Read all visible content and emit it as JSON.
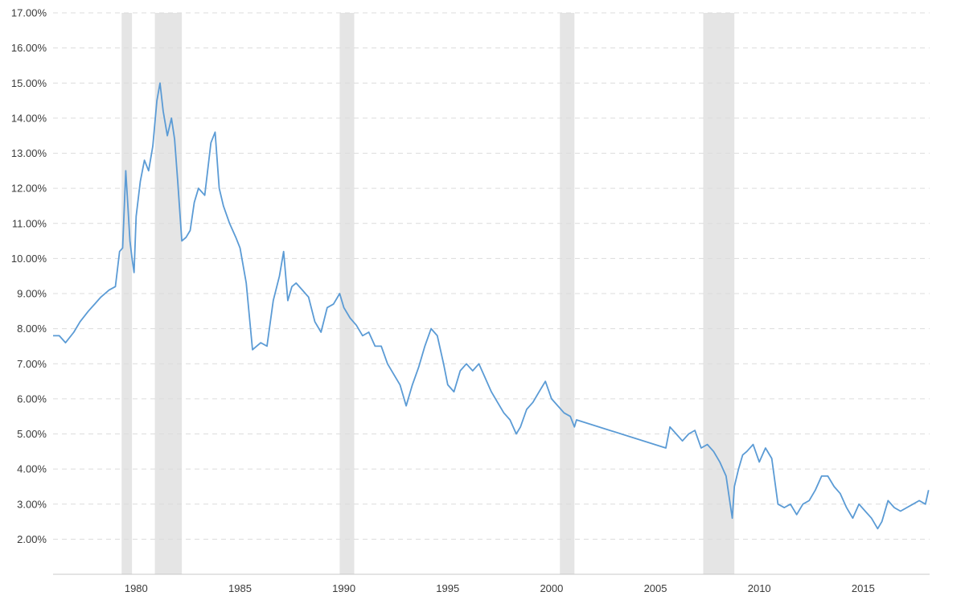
{
  "chart_data": {
    "type": "line",
    "title": "",
    "xlabel": "",
    "ylabel": "",
    "xlim": [
      1976.0,
      2018.2
    ],
    "ylim": [
      1.0,
      17.0
    ],
    "grid": true,
    "y_ticks": [
      {
        "value": 2,
        "label": "2.00%"
      },
      {
        "value": 3,
        "label": "3.00%"
      },
      {
        "value": 4,
        "label": "4.00%"
      },
      {
        "value": 5,
        "label": "5.00%"
      },
      {
        "value": 6,
        "label": "6.00%"
      },
      {
        "value": 7,
        "label": "7.00%"
      },
      {
        "value": 8,
        "label": "8.00%"
      },
      {
        "value": 9,
        "label": "9.00%"
      },
      {
        "value": 10,
        "label": "10.00%"
      },
      {
        "value": 11,
        "label": "11.00%"
      },
      {
        "value": 12,
        "label": "12.00%"
      },
      {
        "value": 13,
        "label": "13.00%"
      },
      {
        "value": 14,
        "label": "14.00%"
      },
      {
        "value": 15,
        "label": "15.00%"
      },
      {
        "value": 16,
        "label": "16.00%"
      },
      {
        "value": 17,
        "label": "17.00%"
      }
    ],
    "x_ticks": [
      {
        "value": 1980,
        "label": "1980"
      },
      {
        "value": 1985,
        "label": "1985"
      },
      {
        "value": 1990,
        "label": "1990"
      },
      {
        "value": 1995,
        "label": "1995"
      },
      {
        "value": 2000,
        "label": "2000"
      },
      {
        "value": 2005,
        "label": "2005"
      },
      {
        "value": 2010,
        "label": "2010"
      },
      {
        "value": 2015,
        "label": "2015"
      }
    ],
    "recessions": [
      {
        "start": 1979.3,
        "end": 1979.8
      },
      {
        "start": 1980.9,
        "end": 1982.2
      },
      {
        "start": 1989.8,
        "end": 1990.5
      },
      {
        "start": 2000.4,
        "end": 2001.1
      },
      {
        "start": 2007.3,
        "end": 2008.8
      }
    ],
    "colors": {
      "line": "#5b9bd5",
      "recession": "#e5e5e5",
      "grid": "#dcdcdc"
    },
    "series": [
      {
        "x": [
          1976.0,
          1976.3,
          1976.6,
          1977.0,
          1977.3,
          1977.7,
          1978.0,
          1978.3,
          1978.7,
          1979.0,
          1979.2,
          1979.35,
          1979.5,
          1979.7,
          1979.8,
          1979.9,
          1980.0,
          1980.2,
          1980.4,
          1980.6,
          1980.8,
          1981.0,
          1981.15,
          1981.3,
          1981.5,
          1981.7,
          1981.85,
          1982.0,
          1982.2,
          1982.4,
          1982.6,
          1982.8,
          1983.0,
          1983.3,
          1983.6,
          1983.8,
          1984.0,
          1984.2,
          1984.5,
          1984.8,
          1985.0,
          1985.3,
          1985.6,
          1985.8,
          1986.0,
          1986.3,
          1986.6,
          1986.9,
          1987.1,
          1987.3,
          1987.5,
          1987.7,
          1988.0,
          1988.3,
          1988.6,
          1988.9,
          1989.2,
          1989.5,
          1989.8,
          1990.0,
          1990.3,
          1990.6,
          1990.9,
          1991.2,
          1991.5,
          1991.8,
          1992.1,
          1992.4,
          1992.7,
          1993.0,
          1993.3,
          1993.6,
          1993.9,
          1994.2,
          1994.5,
          1994.8,
          1995.0,
          1995.3,
          1995.6,
          1995.9,
          1996.2,
          1996.5,
          1996.8,
          1997.1,
          1997.4,
          1997.7,
          1998.0,
          1998.3,
          1998.5,
          1998.8,
          1999.1,
          1999.4,
          1999.7,
          2000.0,
          2000.3,
          2000.6,
          2000.9,
          2001.1,
          2001.2,
          2005.5,
          2005.7,
          2006.0,
          2006.3,
          2006.6,
          2006.9,
          2007.2,
          2007.5,
          2007.8,
          2008.1,
          2008.4,
          2008.6,
          2008.7,
          2008.8,
          2009.0,
          2009.2,
          2009.4,
          2009.7,
          2010.0,
          2010.3,
          2010.6,
          2010.9,
          2011.2,
          2011.5,
          2011.8,
          2012.1,
          2012.4,
          2012.7,
          2013.0,
          2013.3,
          2013.6,
          2013.9,
          2014.2,
          2014.5,
          2014.8,
          2015.1,
          2015.4,
          2015.7,
          2015.9,
          2016.2,
          2016.5,
          2016.8,
          2017.1,
          2017.4,
          2017.7,
          2018.0,
          2018.15
        ],
        "values": [
          7.8,
          7.8,
          7.6,
          7.9,
          8.2,
          8.5,
          8.7,
          8.9,
          9.1,
          9.2,
          10.2,
          10.3,
          12.5,
          10.5,
          10.0,
          9.6,
          11.2,
          12.2,
          12.8,
          12.5,
          13.2,
          14.5,
          15.0,
          14.2,
          13.5,
          14.0,
          13.4,
          12.2,
          10.5,
          10.6,
          10.8,
          11.6,
          12.0,
          11.8,
          13.3,
          13.6,
          12.0,
          11.5,
          11.0,
          10.6,
          10.3,
          9.3,
          7.4,
          7.5,
          7.6,
          7.5,
          8.8,
          9.5,
          10.2,
          8.8,
          9.2,
          9.3,
          9.1,
          8.9,
          8.2,
          7.9,
          8.6,
          8.7,
          9.0,
          8.6,
          8.3,
          8.1,
          7.8,
          7.9,
          7.5,
          7.5,
          7.0,
          6.7,
          6.4,
          5.8,
          6.4,
          6.9,
          7.5,
          8.0,
          7.8,
          7.0,
          6.4,
          6.2,
          6.8,
          7.0,
          6.8,
          7.0,
          6.6,
          6.2,
          5.9,
          5.6,
          5.4,
          5.0,
          5.2,
          5.7,
          5.9,
          6.2,
          6.5,
          6.0,
          5.8,
          5.6,
          5.5,
          5.2,
          5.4,
          4.6,
          5.2,
          5.0,
          4.8,
          5.0,
          5.1,
          4.6,
          4.7,
          4.5,
          4.2,
          3.8,
          3.0,
          2.6,
          3.5,
          4.0,
          4.4,
          4.5,
          4.7,
          4.2,
          4.6,
          4.3,
          3.0,
          2.9,
          3.0,
          2.7,
          3.0,
          3.1,
          3.4,
          3.8,
          3.8,
          3.5,
          3.3,
          2.9,
          2.6,
          3.0,
          2.8,
          2.6,
          2.3,
          2.5,
          3.1,
          2.9,
          2.8,
          2.9,
          3.0,
          3.1,
          3.0,
          3.4
        ]
      }
    ]
  }
}
